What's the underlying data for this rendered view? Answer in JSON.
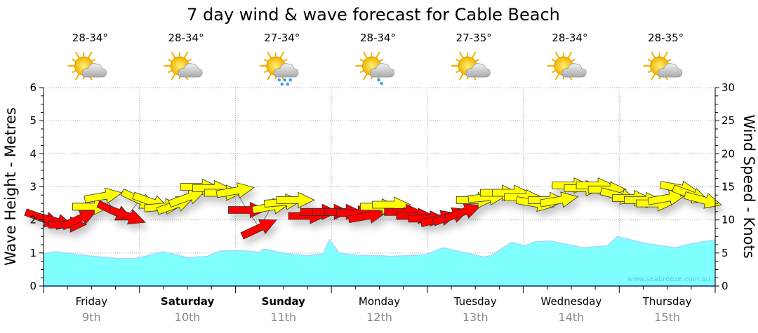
{
  "chart_data": {
    "type": "area",
    "title": "7 day wind & wave forecast for Cable Beach",
    "ylabel_left": "Wave Height - Metres",
    "ylabel_right": "Wind Speed - Knots",
    "ylim_left": [
      0,
      6
    ],
    "ylim_right": [
      0,
      30
    ],
    "yticks_left": [
      "0",
      "1",
      "2",
      "3",
      "4",
      "5",
      "6"
    ],
    "yticks_right": [
      "0",
      "5",
      "10",
      "15",
      "20",
      "25",
      "30"
    ],
    "grid": true,
    "watermark": "www.seabreeze.com.au",
    "xlim_hours": [
      0,
      168
    ],
    "days": [
      {
        "day": "Friday",
        "date": "9th",
        "bold": false,
        "temp": "28-34°",
        "icon": "partly-cloudy"
      },
      {
        "day": "Saturday",
        "date": "10th",
        "bold": true,
        "temp": "28-34°",
        "icon": "partly-cloudy"
      },
      {
        "day": "Sunday",
        "date": "11th",
        "bold": true,
        "temp": "27-34°",
        "icon": "showers"
      },
      {
        "day": "Monday",
        "date": "12th",
        "bold": false,
        "temp": "28-34°",
        "icon": "light-showers"
      },
      {
        "day": "Tuesday",
        "date": "13th",
        "bold": false,
        "temp": "27-35°",
        "icon": "partly-cloudy"
      },
      {
        "day": "Wednesday",
        "date": "14th",
        "bold": false,
        "temp": "28-34°",
        "icon": "partly-cloudy"
      },
      {
        "day": "Thursday",
        "date": "15th",
        "bold": false,
        "temp": "28-35°",
        "icon": "partly-cloudy"
      }
    ],
    "wave_series": {
      "name": "Wave Height (m)",
      "color": "#80ffff",
      "points": [
        [
          0,
          0.98
        ],
        [
          3,
          1.04
        ],
        [
          11,
          0.92
        ],
        [
          19,
          0.83
        ],
        [
          23,
          0.83
        ],
        [
          30,
          1.04
        ],
        [
          36,
          0.86
        ],
        [
          41,
          0.9
        ],
        [
          44,
          1.06
        ],
        [
          49,
          1.08
        ],
        [
          54,
          1.02
        ],
        [
          55,
          1.12
        ],
        [
          61,
          0.98
        ],
        [
          66,
          0.92
        ],
        [
          70,
          0.98
        ],
        [
          71.5,
          1.4
        ],
        [
          74,
          1.0
        ],
        [
          78.5,
          0.93
        ],
        [
          84,
          0.92
        ],
        [
          87,
          0.9
        ],
        [
          95.5,
          0.95
        ],
        [
          100,
          1.16
        ],
        [
          110,
          0.88
        ],
        [
          112,
          0.92
        ],
        [
          117,
          1.32
        ],
        [
          120.5,
          1.22
        ],
        [
          123,
          1.34
        ],
        [
          127,
          1.36
        ],
        [
          135,
          1.16
        ],
        [
          141,
          1.22
        ],
        [
          143.5,
          1.5
        ],
        [
          151,
          1.28
        ],
        [
          158,
          1.16
        ],
        [
          162,
          1.28
        ],
        [
          168,
          1.4
        ]
      ]
    },
    "wind_series": {
      "name": "Wind Speed (knots)",
      "colors": {
        "strong": "#ffff00",
        "moderate": "#ff0000"
      },
      "points": [
        {
          "h": 0,
          "kn": 10.2,
          "rot": 20,
          "c": "moderate"
        },
        {
          "h": 3,
          "kn": 9.8,
          "rot": 15,
          "c": "moderate"
        },
        {
          "h": 6,
          "kn": 9.3,
          "rot": 0,
          "c": "moderate"
        },
        {
          "h": 9,
          "kn": 10.2,
          "rot": -25,
          "c": "moderate"
        },
        {
          "h": 12,
          "kn": 12.0,
          "rot": 0,
          "c": "strong"
        },
        {
          "h": 15,
          "kn": 13.6,
          "rot": -10,
          "c": "strong"
        },
        {
          "h": 18,
          "kn": 11.2,
          "rot": 25,
          "c": "moderate"
        },
        {
          "h": 21,
          "kn": 10.6,
          "rot": 20,
          "c": "moderate"
        },
        {
          "h": 24,
          "kn": 13.0,
          "rot": 25,
          "c": "strong"
        },
        {
          "h": 27,
          "kn": 12.7,
          "rot": 20,
          "c": "strong"
        },
        {
          "h": 30,
          "kn": 12.0,
          "rot": -5,
          "c": "strong"
        },
        {
          "h": 33,
          "kn": 12.3,
          "rot": -20,
          "c": "strong"
        },
        {
          "h": 36,
          "kn": 13.4,
          "rot": -20,
          "c": "strong"
        },
        {
          "h": 39,
          "kn": 15.0,
          "rot": 0,
          "c": "strong"
        },
        {
          "h": 42,
          "kn": 14.8,
          "rot": 0,
          "c": "strong"
        },
        {
          "h": 45,
          "kn": 14.1,
          "rot": 0,
          "c": "strong"
        },
        {
          "h": 48,
          "kn": 14.4,
          "rot": -10,
          "c": "strong"
        },
        {
          "h": 51,
          "kn": 11.5,
          "rot": 0,
          "c": "moderate"
        },
        {
          "h": 54,
          "kn": 8.8,
          "rot": -25,
          "c": "moderate"
        },
        {
          "h": 57,
          "kn": 12.0,
          "rot": -10,
          "c": "strong"
        },
        {
          "h": 60,
          "kn": 12.7,
          "rot": -5,
          "c": "strong"
        },
        {
          "h": 63,
          "kn": 13.0,
          "rot": 0,
          "c": "strong"
        },
        {
          "h": 66,
          "kn": 10.6,
          "rot": 0,
          "c": "moderate"
        },
        {
          "h": 69,
          "kn": 11.2,
          "rot": 0,
          "c": "moderate"
        },
        {
          "h": 72,
          "kn": 11.2,
          "rot": 0,
          "c": "moderate"
        },
        {
          "h": 75,
          "kn": 11.2,
          "rot": 0,
          "c": "moderate"
        },
        {
          "h": 78,
          "kn": 11.0,
          "rot": 0,
          "c": "moderate"
        },
        {
          "h": 81,
          "kn": 10.6,
          "rot": -10,
          "c": "moderate"
        },
        {
          "h": 84,
          "kn": 12.0,
          "rot": 0,
          "c": "strong"
        },
        {
          "h": 87,
          "kn": 12.3,
          "rot": 0,
          "c": "strong"
        },
        {
          "h": 90,
          "kn": 11.2,
          "rot": 0,
          "c": "moderate"
        },
        {
          "h": 93,
          "kn": 10.6,
          "rot": 0,
          "c": "moderate"
        },
        {
          "h": 96,
          "kn": 10.2,
          "rot": 0,
          "c": "moderate"
        },
        {
          "h": 99,
          "kn": 10.2,
          "rot": -15,
          "c": "moderate"
        },
        {
          "h": 102,
          "kn": 10.6,
          "rot": -20,
          "c": "moderate"
        },
        {
          "h": 105,
          "kn": 11.2,
          "rot": -20,
          "c": "moderate"
        },
        {
          "h": 108,
          "kn": 13.0,
          "rot": 0,
          "c": "strong"
        },
        {
          "h": 111,
          "kn": 13.4,
          "rot": -5,
          "c": "strong"
        },
        {
          "h": 114,
          "kn": 14.1,
          "rot": 0,
          "c": "strong"
        },
        {
          "h": 117,
          "kn": 14.1,
          "rot": 0,
          "c": "strong"
        },
        {
          "h": 120,
          "kn": 13.4,
          "rot": 0,
          "c": "strong"
        },
        {
          "h": 123,
          "kn": 12.5,
          "rot": 10,
          "c": "strong"
        },
        {
          "h": 126,
          "kn": 13.0,
          "rot": 0,
          "c": "strong"
        },
        {
          "h": 129,
          "kn": 13.0,
          "rot": -10,
          "c": "strong"
        },
        {
          "h": 132,
          "kn": 15.2,
          "rot": 0,
          "c": "strong"
        },
        {
          "h": 135,
          "kn": 14.8,
          "rot": 0,
          "c": "strong"
        },
        {
          "h": 138,
          "kn": 15.2,
          "rot": 0,
          "c": "strong"
        },
        {
          "h": 141,
          "kn": 14.6,
          "rot": 0,
          "c": "strong"
        },
        {
          "h": 144,
          "kn": 13.6,
          "rot": 15,
          "c": "strong"
        },
        {
          "h": 147,
          "kn": 13.3,
          "rot": 0,
          "c": "strong"
        },
        {
          "h": 150,
          "kn": 13.0,
          "rot": 0,
          "c": "strong"
        },
        {
          "h": 153,
          "kn": 12.5,
          "rot": 0,
          "c": "strong"
        },
        {
          "h": 156,
          "kn": 13.3,
          "rot": -10,
          "c": "strong"
        },
        {
          "h": 159,
          "kn": 14.8,
          "rot": 10,
          "c": "strong"
        },
        {
          "h": 162,
          "kn": 13.8,
          "rot": 20,
          "c": "strong"
        },
        {
          "h": 165,
          "kn": 13.0,
          "rot": 15,
          "c": "strong"
        }
      ]
    }
  }
}
